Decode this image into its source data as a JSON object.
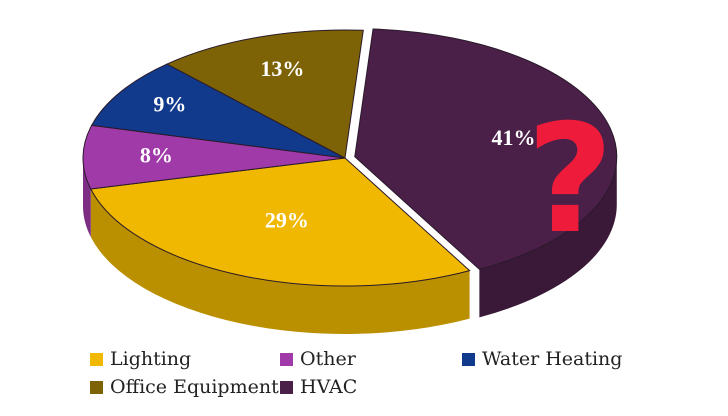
{
  "chart_data": {
    "type": "pie",
    "title": "",
    "slices": [
      {
        "label": "HVAC",
        "value": 41,
        "display": "41%",
        "color": "#4a1f48",
        "exploded": true
      },
      {
        "label": "Lighting",
        "value": 29,
        "display": "29%",
        "color": "#f0b800",
        "exploded": false
      },
      {
        "label": "Other",
        "value": 8,
        "display": "8%",
        "color": "#a03aa8",
        "exploded": false
      },
      {
        "label": "Water Heating",
        "value": 9,
        "display": "9%",
        "color": "#123a8c",
        "exploded": false
      },
      {
        "label": "Office Equipment",
        "value": 13,
        "display": "13%",
        "color": "#7d6306",
        "exploded": false
      }
    ],
    "legend": [
      "Lighting",
      "Other",
      "Water Heating",
      "Office Equipment",
      "HVAC"
    ],
    "legend_position": "bottom",
    "annotation": {
      "text": "?",
      "color": "#ee1c3a"
    }
  }
}
